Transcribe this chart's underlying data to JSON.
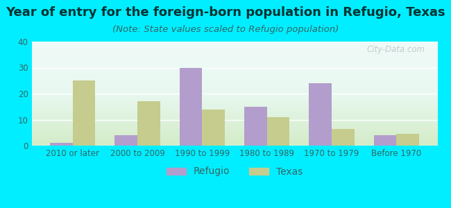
{
  "categories": [
    "2010 or later",
    "2000 to 2009",
    "1990 to 1999",
    "1980 to 1989",
    "1970 to 1979",
    "Before 1970"
  ],
  "refugio_values": [
    1,
    4,
    30,
    15,
    24,
    4
  ],
  "texas_values": [
    25,
    17,
    14,
    11,
    6.5,
    4.5
  ],
  "refugio_color": "#b39dcc",
  "texas_color": "#c5cc8e",
  "title": "Year of entry for the foreign-born population in Refugio, Texas",
  "subtitle": "(Note: State values scaled to Refugio population)",
  "legend_refugio": "Refugio",
  "legend_texas": "Texas",
  "ylim": [
    0,
    40
  ],
  "yticks": [
    0,
    10,
    20,
    30,
    40
  ],
  "background_outer": "#00eeff",
  "bar_width": 0.35,
  "title_fontsize": 13,
  "subtitle_fontsize": 9.5,
  "tick_fontsize": 8.5,
  "legend_fontsize": 10,
  "watermark_text": "City-Data.com",
  "title_color": "#003333",
  "subtitle_color": "#336666",
  "tick_color": "#336666"
}
